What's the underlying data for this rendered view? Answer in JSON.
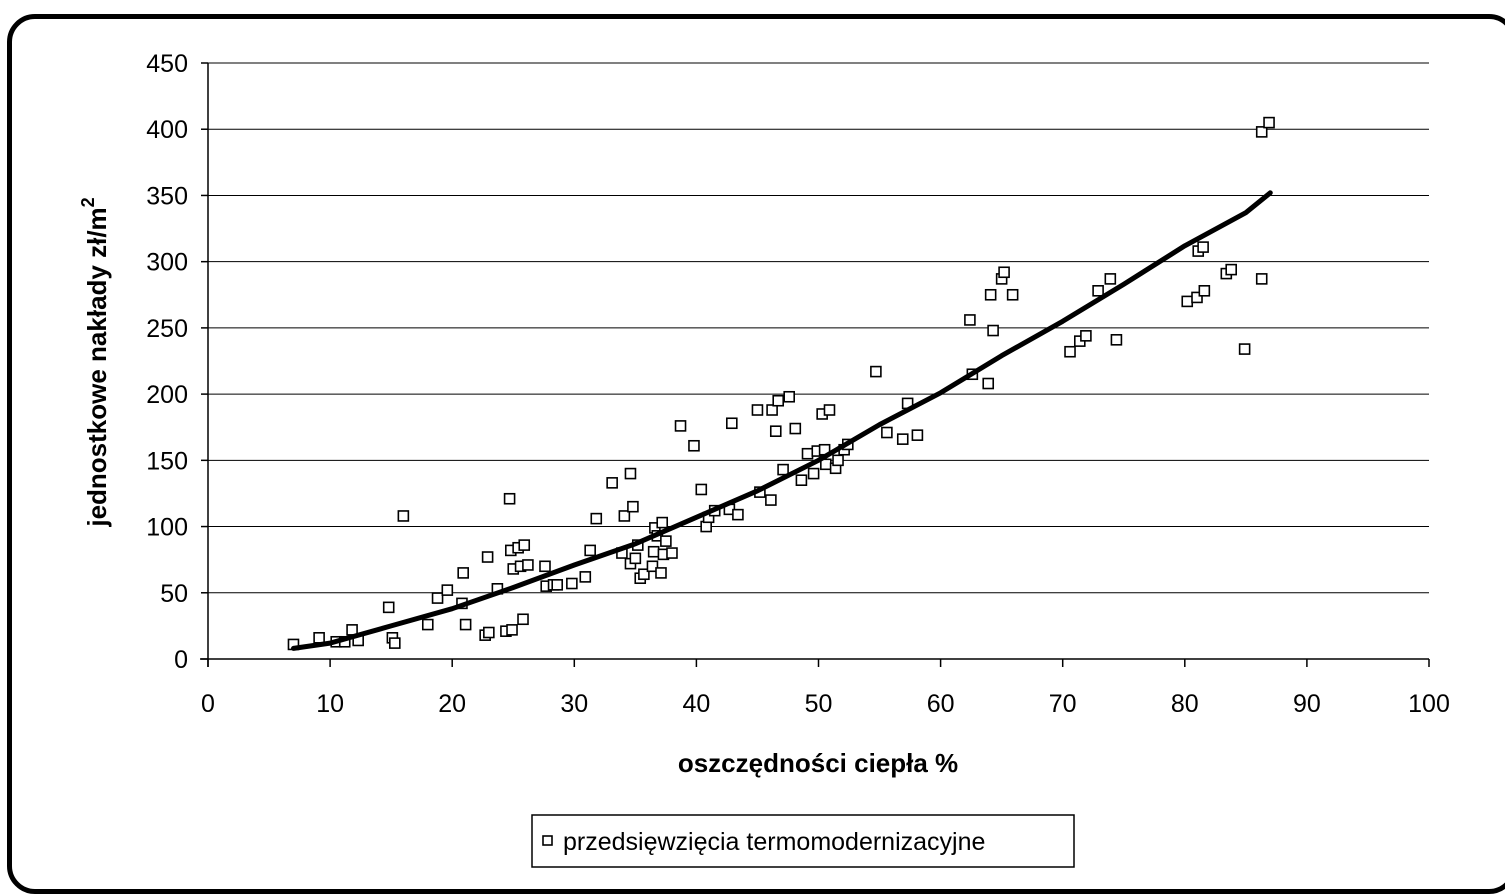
{
  "chart_data": {
    "type": "scatter",
    "title": "",
    "xlabel": "oszczędności ciepła %",
    "ylabel": "jednostkowe nakłady zł/m",
    "ylabel_superscript": "2",
    "xlim": [
      0,
      100
    ],
    "ylim": [
      0,
      450
    ],
    "xticks": [
      0,
      10,
      20,
      30,
      40,
      50,
      60,
      70,
      80,
      90,
      100
    ],
    "yticks": [
      0,
      50,
      100,
      150,
      200,
      250,
      300,
      350,
      400,
      450
    ],
    "grid": "horizontal",
    "legend_position": "bottom-center",
    "colors": {
      "axis": "#000000",
      "grid": "#000000",
      "marker_fill": "#ffffff",
      "trend": "#000000"
    },
    "series": [
      {
        "name": "przedsięwzięcia termomodernizacyjne",
        "marker": "open-square",
        "points": [
          [
            7.0,
            11
          ],
          [
            9.1,
            16
          ],
          [
            10.5,
            13
          ],
          [
            11.2,
            13
          ],
          [
            11.8,
            22
          ],
          [
            12.3,
            14
          ],
          [
            14.8,
            39
          ],
          [
            15.1,
            16
          ],
          [
            15.3,
            12
          ],
          [
            16.0,
            108
          ],
          [
            18.0,
            26
          ],
          [
            18.8,
            46
          ],
          [
            19.6,
            52
          ],
          [
            20.9,
            65
          ],
          [
            20.8,
            42
          ],
          [
            21.1,
            26
          ],
          [
            22.7,
            18
          ],
          [
            23.0,
            20
          ],
          [
            22.9,
            77
          ],
          [
            23.7,
            53
          ],
          [
            24.4,
            21
          ],
          [
            24.9,
            22
          ],
          [
            24.7,
            121
          ],
          [
            24.8,
            82
          ],
          [
            25.0,
            68
          ],
          [
            25.4,
            84
          ],
          [
            25.6,
            70
          ],
          [
            25.8,
            30
          ],
          [
            25.9,
            86
          ],
          [
            26.2,
            71
          ],
          [
            27.6,
            70
          ],
          [
            27.7,
            55
          ],
          [
            28.3,
            56
          ],
          [
            28.6,
            56
          ],
          [
            29.8,
            57
          ],
          [
            30.9,
            62
          ],
          [
            31.3,
            82
          ],
          [
            31.8,
            106
          ],
          [
            33.1,
            133
          ],
          [
            33.9,
            80
          ],
          [
            34.1,
            108
          ],
          [
            34.6,
            140
          ],
          [
            34.6,
            72
          ],
          [
            34.8,
            115
          ],
          [
            35.0,
            76
          ],
          [
            35.2,
            86
          ],
          [
            35.4,
            61
          ],
          [
            35.7,
            64
          ],
          [
            36.4,
            70
          ],
          [
            36.5,
            81
          ],
          [
            36.6,
            99
          ],
          [
            36.8,
            93
          ],
          [
            37.1,
            65
          ],
          [
            37.2,
            103
          ],
          [
            37.3,
            79
          ],
          [
            37.5,
            89
          ],
          [
            38.0,
            80
          ],
          [
            38.7,
            176
          ],
          [
            39.8,
            161
          ],
          [
            40.4,
            128
          ],
          [
            40.8,
            100
          ],
          [
            41.0,
            107
          ],
          [
            41.5,
            112
          ],
          [
            42.7,
            113
          ],
          [
            42.9,
            178
          ],
          [
            43.4,
            109
          ],
          [
            45.0,
            188
          ],
          [
            45.2,
            126
          ],
          [
            46.1,
            120
          ],
          [
            46.2,
            188
          ],
          [
            46.5,
            172
          ],
          [
            46.7,
            195
          ],
          [
            47.1,
            143
          ],
          [
            47.6,
            198
          ],
          [
            48.1,
            174
          ],
          [
            48.6,
            135
          ],
          [
            49.1,
            155
          ],
          [
            49.6,
            140
          ],
          [
            49.9,
            157
          ],
          [
            50.3,
            185
          ],
          [
            50.5,
            158
          ],
          [
            50.6,
            147
          ],
          [
            50.9,
            188
          ],
          [
            51.4,
            144
          ],
          [
            51.6,
            150
          ],
          [
            52.1,
            158
          ],
          [
            52.4,
            162
          ],
          [
            54.7,
            217
          ],
          [
            55.6,
            171
          ],
          [
            56.9,
            166
          ],
          [
            57.3,
            193
          ],
          [
            58.1,
            169
          ],
          [
            62.4,
            256
          ],
          [
            62.6,
            215
          ],
          [
            63.9,
            208
          ],
          [
            64.1,
            275
          ],
          [
            64.3,
            248
          ],
          [
            65.0,
            287
          ],
          [
            65.2,
            292
          ],
          [
            65.9,
            275
          ],
          [
            70.6,
            232
          ],
          [
            71.4,
            240
          ],
          [
            71.9,
            244
          ],
          [
            72.9,
            278
          ],
          [
            73.9,
            287
          ],
          [
            74.4,
            241
          ],
          [
            80.2,
            270
          ],
          [
            81.0,
            273
          ],
          [
            81.1,
            308
          ],
          [
            81.5,
            311
          ],
          [
            81.6,
            278
          ],
          [
            83.4,
            291
          ],
          [
            83.8,
            294
          ],
          [
            84.9,
            234
          ],
          [
            86.3,
            287
          ],
          [
            86.3,
            398
          ],
          [
            86.9,
            405
          ]
        ]
      }
    ],
    "trendline": {
      "points": [
        [
          7,
          8
        ],
        [
          10,
          12
        ],
        [
          15,
          25
        ],
        [
          20,
          38
        ],
        [
          25,
          54
        ],
        [
          30,
          71
        ],
        [
          35,
          87
        ],
        [
          40,
          107
        ],
        [
          45,
          127
        ],
        [
          50,
          150
        ],
        [
          55,
          177
        ],
        [
          60,
          201
        ],
        [
          65,
          229
        ],
        [
          70,
          255
        ],
        [
          75,
          283
        ],
        [
          80,
          312
        ],
        [
          85,
          337
        ],
        [
          87,
          352
        ]
      ]
    }
  }
}
